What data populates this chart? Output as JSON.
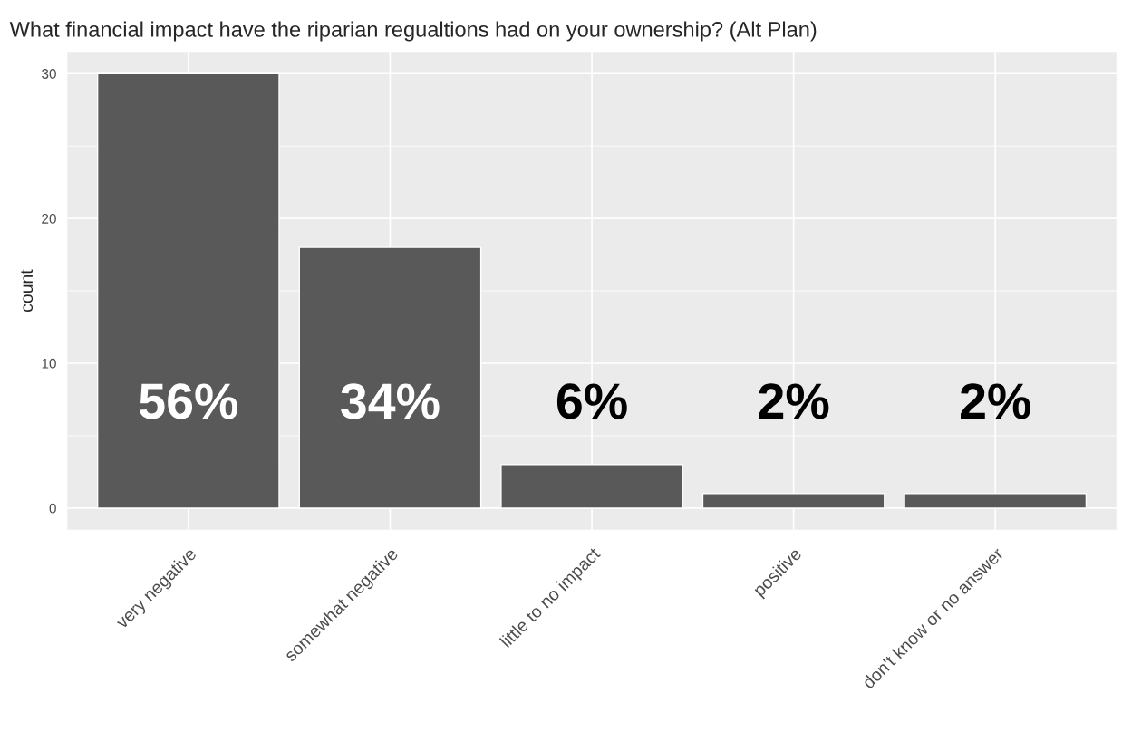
{
  "chart_data": {
    "type": "bar",
    "title": "What financial impact have the riparian regualtions had on your ownership? (Alt Plan)",
    "ylabel": "count",
    "categories": [
      "very negative",
      "somewhat negative",
      "little to no impact",
      "positive",
      "don't know or no answer"
    ],
    "values": [
      30,
      18,
      3,
      1,
      1
    ],
    "annotations": [
      "56%",
      "34%",
      "6%",
      "2%",
      "2%"
    ],
    "color": "#595959",
    "ylim": [
      -1.5,
      31.5
    ],
    "yticks": [
      0,
      10,
      20,
      30
    ],
    "grid": true
  }
}
